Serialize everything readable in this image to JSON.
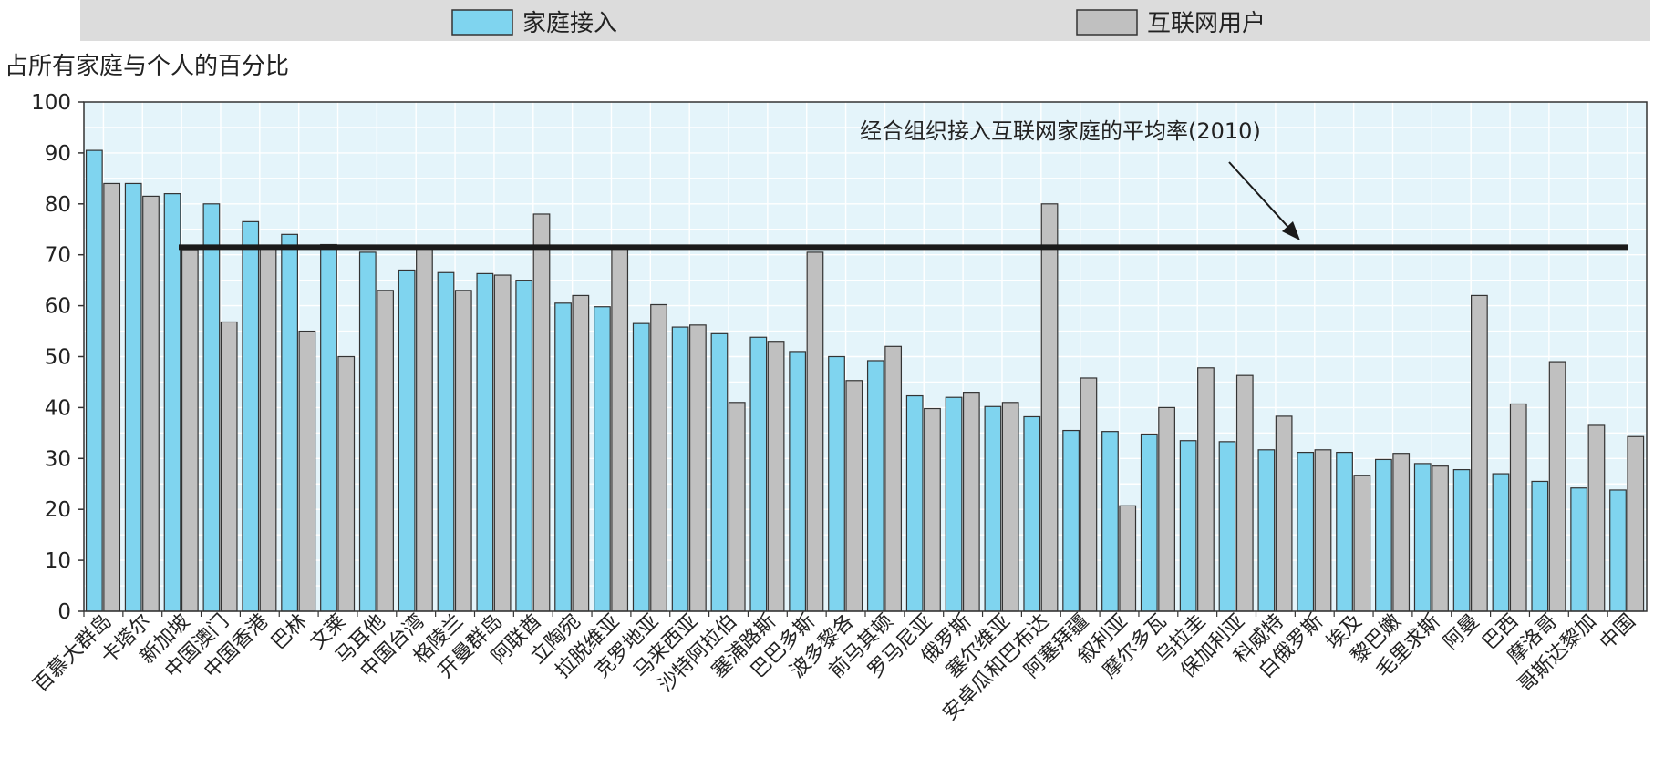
{
  "chart_data": {
    "type": "bar",
    "ylabel": "占所有家庭与个人的百分比",
    "ylim": [
      0,
      100
    ],
    "yticks": [
      0,
      10,
      20,
      30,
      40,
      50,
      60,
      70,
      80,
      90,
      100
    ],
    "legend_position": "top",
    "colors": {
      "家庭接入": "#7fd4ef",
      "互联网用户": "#c0c0c0",
      "plot_background": "#e4f4fa",
      "grid": "#ffffff",
      "average_line": "#1a1a1a"
    },
    "categories": [
      "百慕大群岛",
      "卡塔尔",
      "新加坡",
      "中国澳门",
      "中国香港",
      "巴林",
      "文莱",
      "马耳他",
      "中国台湾",
      "格陵兰",
      "开曼群岛",
      "阿联酋",
      "立陶宛",
      "拉脱维亚",
      "克罗地亚",
      "马来西亚",
      "沙特阿拉伯",
      "塞浦路斯",
      "巴巴多斯",
      "波多黎各",
      "前马其顿",
      "罗马尼亚",
      "俄罗斯",
      "塞尔维亚",
      "安卓瓜和巴布达",
      "阿塞拜疆",
      "叙利亚",
      "摩尔多瓦",
      "乌拉圭",
      "保加利亚",
      "科威特",
      "白俄罗斯",
      "埃及",
      "黎巴嫩",
      "毛里求斯",
      "阿曼",
      "巴西",
      "摩洛哥",
      "哥斯达黎加",
      "中国"
    ],
    "series": [
      {
        "name": "家庭接入",
        "values": [
          90.5,
          84,
          82,
          80,
          76.5,
          74,
          72,
          70.5,
          67,
          66.5,
          66.3,
          65,
          60.5,
          59.8,
          56.5,
          55.8,
          54.5,
          53.8,
          51,
          50,
          49.2,
          42.3,
          42,
          40.2,
          38.2,
          35.5,
          35.3,
          34.8,
          33.5,
          33.3,
          31.7,
          31.2,
          31.2,
          29.8,
          29,
          27.8,
          27,
          25.5,
          24.2,
          23.8
        ]
      },
      {
        "name": "互联网用户",
        "values": [
          84,
          81.5,
          71,
          56.8,
          71.5,
          55,
          50,
          63,
          71.5,
          63,
          66,
          78,
          62,
          71.5,
          60.2,
          56.2,
          41,
          53,
          70.5,
          45.3,
          52,
          39.8,
          43,
          41,
          80,
          45.8,
          20.7,
          40,
          47.8,
          46.3,
          38.3,
          31.7,
          26.7,
          31,
          28.5,
          62,
          40.7,
          49,
          36.5,
          34.3
        ]
      }
    ],
    "reference_line": {
      "label": "经合组织接入互联网家庭的平均率(2010)",
      "value": 71.5
    }
  }
}
